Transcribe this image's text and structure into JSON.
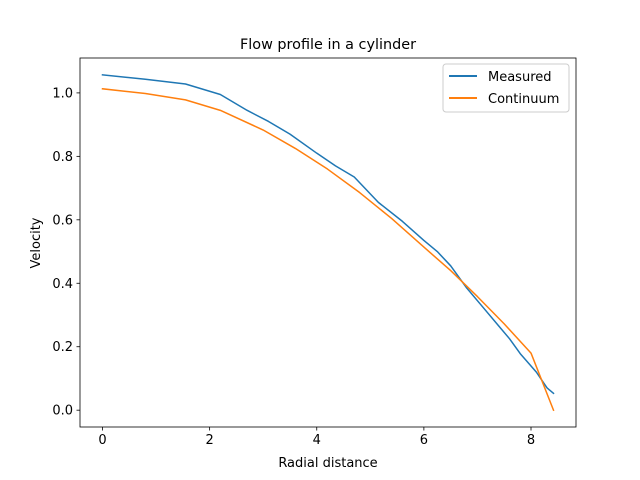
{
  "chart_data": {
    "type": "line",
    "title": "Flow profile in a cylinder",
    "xlabel": "Radial distance",
    "ylabel": "Velocity",
    "xlim": [
      -0.42,
      8.84
    ],
    "ylim": [
      -0.053,
      1.11
    ],
    "xticks": [
      0,
      2,
      4,
      6,
      8
    ],
    "yticks": [
      0.0,
      0.2,
      0.4,
      0.6,
      0.8,
      1.0
    ],
    "xtick_labels": [
      "0",
      "2",
      "4",
      "6",
      "8"
    ],
    "ytick_labels": [
      "0.0",
      "0.2",
      "0.4",
      "0.6",
      "0.8",
      "1.0"
    ],
    "grid": false,
    "legend_position": "top-right",
    "series": [
      {
        "name": "Measured",
        "color": "#1f77b4",
        "x": [
          0.0,
          0.8,
          1.55,
          2.2,
          2.7,
          3.1,
          3.5,
          4.0,
          4.35,
          4.7,
          5.15,
          5.6,
          6.0,
          6.25,
          6.5,
          6.8,
          7.1,
          7.4,
          7.6,
          7.8,
          8.1,
          8.3,
          8.42
        ],
        "y": [
          1.057,
          1.043,
          1.028,
          0.995,
          0.945,
          0.91,
          0.87,
          0.81,
          0.77,
          0.735,
          0.655,
          0.595,
          0.535,
          0.5,
          0.455,
          0.385,
          0.325,
          0.265,
          0.225,
          0.178,
          0.12,
          0.07,
          0.053
        ]
      },
      {
        "name": "Continuum",
        "color": "#ff7f0e",
        "x": [
          0.0,
          0.8,
          1.55,
          2.2,
          3.0,
          3.6,
          4.2,
          4.8,
          5.4,
          6.0,
          6.5,
          7.0,
          7.5,
          8.0,
          8.42
        ],
        "y": [
          1.013,
          0.998,
          0.978,
          0.945,
          0.883,
          0.825,
          0.76,
          0.686,
          0.604,
          0.514,
          0.44,
          0.358,
          0.272,
          0.18,
          0.0
        ]
      }
    ]
  }
}
